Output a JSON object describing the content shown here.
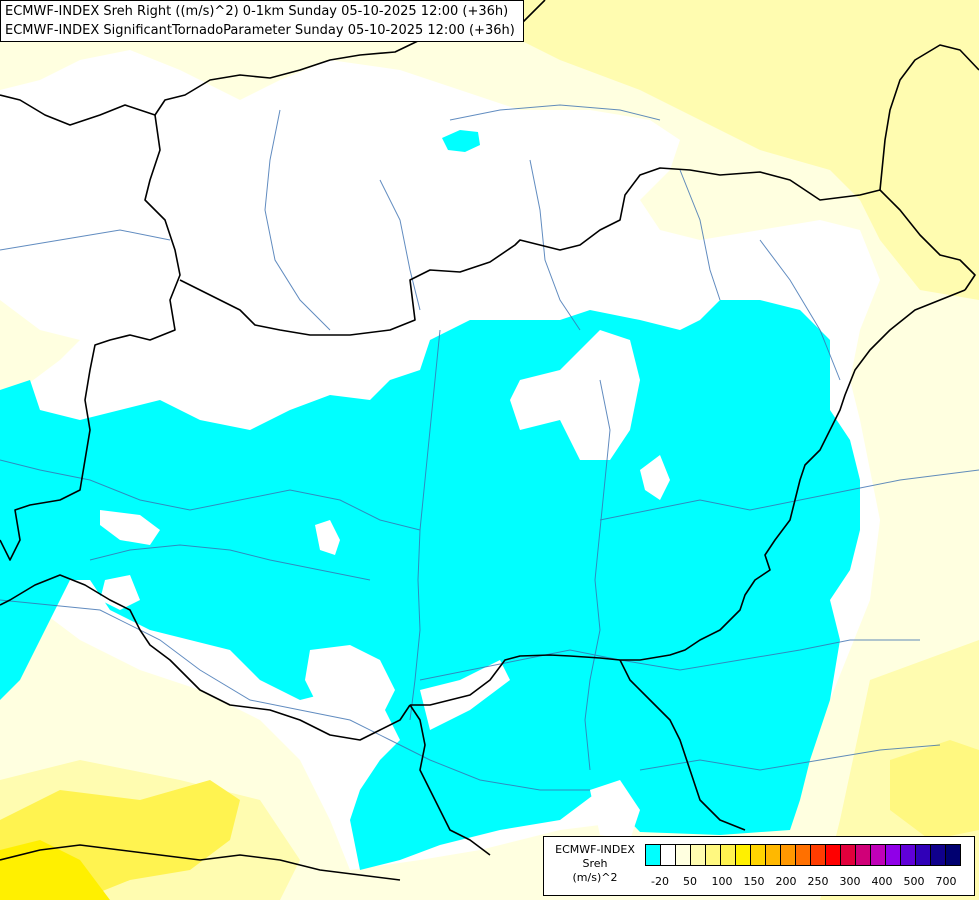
{
  "header": {
    "line1": "ECMWF-INDEX Sreh Right ((m/s)^2) 0-1km Sunday 05-10-2025 12:00 (+36h)",
    "line2": "ECMWF-INDEX SignificantTornadoParameter Sunday 05-10-2025 12:00 (+36h)"
  },
  "legend": {
    "model": "ECMWF-INDEX",
    "param": "Sreh",
    "unit": "(m/s)^2",
    "colors": [
      "#00ffff",
      "#ffffff",
      "#ffffe0",
      "#fffcb0",
      "#fff880",
      "#fff350",
      "#fff000",
      "#ffd400",
      "#ffb800",
      "#ff9800",
      "#ff7000",
      "#ff3c00",
      "#ff0000",
      "#e2003c",
      "#d00078",
      "#c000b8",
      "#9000e8",
      "#6000d8",
      "#3000b8",
      "#10008c",
      "#000070"
    ],
    "ticks": [
      "-20",
      "50",
      "100",
      "150",
      "200",
      "250",
      "300",
      "400",
      "500",
      "700"
    ]
  }
}
